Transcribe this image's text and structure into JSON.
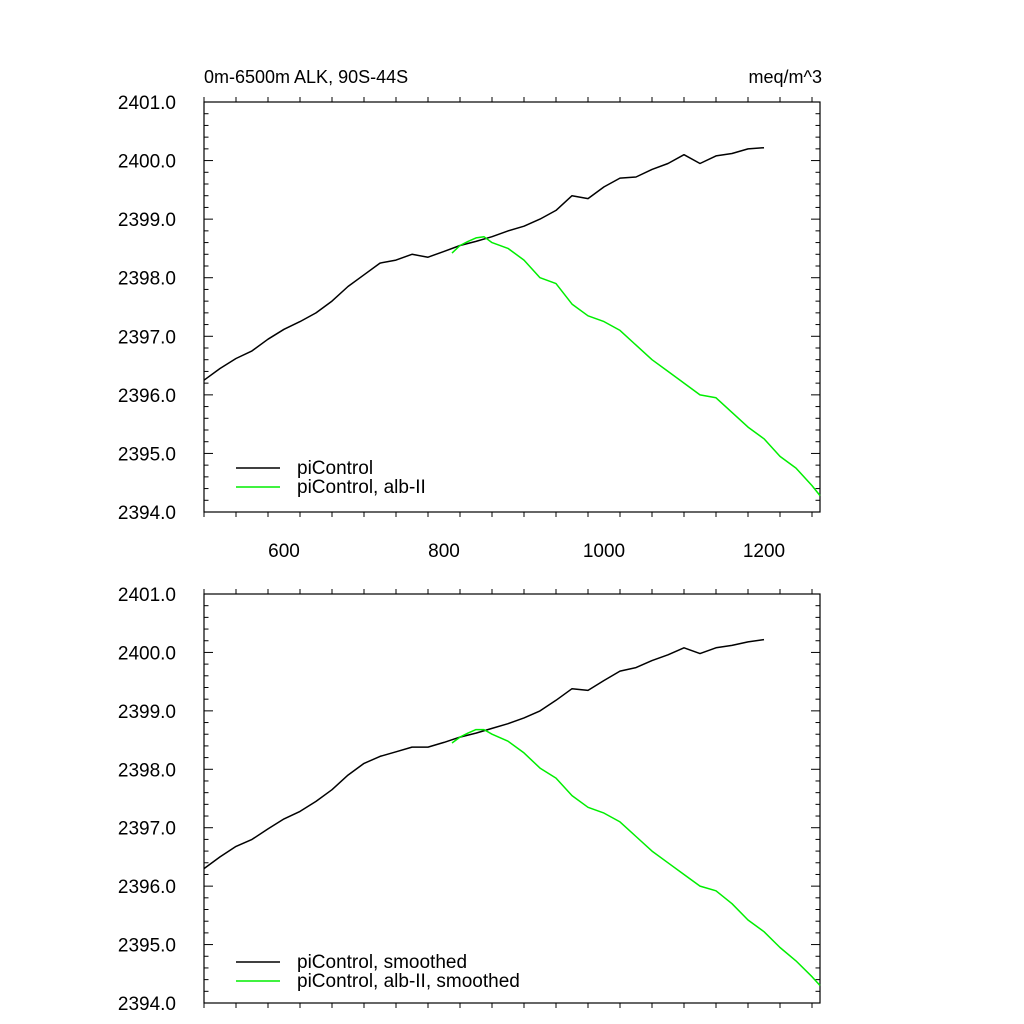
{
  "header": {
    "left": "0m-6500m ALK, 90S-44S",
    "right": "meq/m^3"
  },
  "chart_data": [
    {
      "type": "line",
      "panel": "top",
      "title": "",
      "xlabel": "",
      "ylabel": "",
      "xlim": [
        500,
        1270
      ],
      "ylim": [
        2394.0,
        2401.0
      ],
      "x_ticks": [
        600,
        800,
        1000,
        1200
      ],
      "x_tick_labels": [
        "600",
        "800",
        "1000",
        "1200"
      ],
      "y_ticks": [
        2394.0,
        2395.0,
        2396.0,
        2397.0,
        2398.0,
        2399.0,
        2400.0,
        2401.0
      ],
      "y_tick_labels": [
        "2394.0",
        "2395.0",
        "2396.0",
        "2397.0",
        "2398.0",
        "2399.0",
        "2400.0",
        "2401.0"
      ],
      "grid": false,
      "legend_position": "bottom-left",
      "series": [
        {
          "name": "piControl",
          "color": "#000000",
          "x": [
            500,
            520,
            540,
            560,
            580,
            600,
            620,
            640,
            660,
            680,
            700,
            720,
            740,
            760,
            780,
            800,
            820,
            840,
            860,
            880,
            900,
            920,
            940,
            960,
            980,
            1000,
            1020,
            1040,
            1060,
            1080,
            1100,
            1120,
            1140,
            1160,
            1180,
            1200
          ],
          "y": [
            2396.25,
            2396.45,
            2396.62,
            2396.75,
            2396.95,
            2397.12,
            2397.25,
            2397.4,
            2397.6,
            2397.85,
            2398.05,
            2398.25,
            2398.3,
            2398.4,
            2398.35,
            2398.45,
            2398.55,
            2398.62,
            2398.7,
            2398.8,
            2398.88,
            2399.0,
            2399.15,
            2399.4,
            2399.35,
            2399.55,
            2399.7,
            2399.72,
            2399.85,
            2399.95,
            2400.1,
            2399.95,
            2400.08,
            2400.12,
            2400.2,
            2400.22
          ]
        },
        {
          "name": "piControl, alb-II",
          "color": "#00ee00",
          "x": [
            810,
            820,
            830,
            840,
            850,
            860,
            880,
            900,
            920,
            940,
            960,
            980,
            1000,
            1020,
            1040,
            1060,
            1080,
            1100,
            1120,
            1140,
            1160,
            1180,
            1200,
            1220,
            1240,
            1260,
            1270
          ],
          "y": [
            2398.42,
            2398.55,
            2398.62,
            2398.68,
            2398.7,
            2398.6,
            2398.5,
            2398.3,
            2398.0,
            2397.9,
            2397.55,
            2397.35,
            2397.25,
            2397.1,
            2396.85,
            2396.6,
            2396.4,
            2396.2,
            2396.0,
            2395.95,
            2395.7,
            2395.45,
            2395.25,
            2394.95,
            2394.75,
            2394.45,
            2394.28
          ]
        }
      ]
    },
    {
      "type": "line",
      "panel": "bottom",
      "title": "",
      "xlabel": "",
      "ylabel": "",
      "xlim": [
        500,
        1270
      ],
      "ylim": [
        2394.0,
        2401.0
      ],
      "x_ticks": [
        600,
        800,
        1000,
        1200
      ],
      "x_tick_labels": [],
      "y_ticks": [
        2394.0,
        2395.0,
        2396.0,
        2397.0,
        2398.0,
        2399.0,
        2400.0,
        2401.0
      ],
      "y_tick_labels": [
        "2394.0",
        "2395.0",
        "2396.0",
        "2397.0",
        "2398.0",
        "2399.0",
        "2400.0",
        "2401.0"
      ],
      "grid": false,
      "legend_position": "bottom-left",
      "series": [
        {
          "name": "piControl, smoothed",
          "color": "#000000",
          "x": [
            500,
            520,
            540,
            560,
            580,
            600,
            620,
            640,
            660,
            680,
            700,
            720,
            740,
            760,
            780,
            800,
            820,
            840,
            860,
            880,
            900,
            920,
            940,
            960,
            980,
            1000,
            1020,
            1040,
            1060,
            1080,
            1100,
            1120,
            1140,
            1160,
            1180,
            1200
          ],
          "y": [
            2396.3,
            2396.5,
            2396.68,
            2396.8,
            2396.98,
            2397.15,
            2397.28,
            2397.45,
            2397.65,
            2397.9,
            2398.1,
            2398.22,
            2398.3,
            2398.38,
            2398.38,
            2398.46,
            2398.55,
            2398.62,
            2398.7,
            2398.78,
            2398.88,
            2399.0,
            2399.18,
            2399.38,
            2399.35,
            2399.52,
            2399.68,
            2399.74,
            2399.86,
            2399.96,
            2400.08,
            2399.98,
            2400.08,
            2400.12,
            2400.18,
            2400.22
          ]
        },
        {
          "name": "piControl, alb-II, smoothed",
          "color": "#00ee00",
          "x": [
            810,
            820,
            830,
            840,
            850,
            860,
            880,
            900,
            920,
            940,
            960,
            980,
            1000,
            1020,
            1040,
            1060,
            1080,
            1100,
            1120,
            1140,
            1160,
            1180,
            1200,
            1220,
            1240,
            1260,
            1270
          ],
          "y": [
            2398.45,
            2398.55,
            2398.62,
            2398.68,
            2398.68,
            2398.6,
            2398.48,
            2398.28,
            2398.02,
            2397.85,
            2397.55,
            2397.35,
            2397.25,
            2397.1,
            2396.85,
            2396.6,
            2396.4,
            2396.2,
            2396.0,
            2395.92,
            2395.7,
            2395.42,
            2395.22,
            2394.95,
            2394.72,
            2394.45,
            2394.3
          ]
        }
      ]
    }
  ]
}
